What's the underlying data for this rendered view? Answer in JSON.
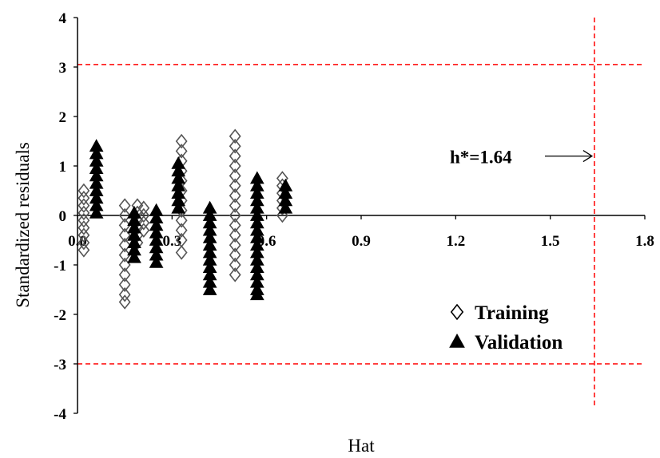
{
  "chart_data": {
    "type": "scatter",
    "title": "",
    "xlabel": "Hat",
    "ylabel": "Standardized residuals",
    "xlim": [
      0.0,
      1.8
    ],
    "ylim": [
      -4,
      4
    ],
    "x_ticks": [
      "0.0",
      "0.3",
      "0.6",
      "0.9",
      "1.2",
      "1.5",
      "1.8"
    ],
    "y_ticks": [
      "4",
      "3",
      "2",
      "1",
      "0",
      "-1",
      "-2",
      "-3",
      "-4"
    ],
    "grid": false,
    "legend_position": "bottom-right",
    "reference_lines": {
      "upper_residual": 3.05,
      "lower_residual": -3.0,
      "warning_leverage": 1.64,
      "color": "#ff0000",
      "style": "dashed"
    },
    "annotation": {
      "text": "h*=1.64",
      "arrow_to_x": 1.64,
      "y": 1.2
    },
    "series": [
      {
        "name": "Training",
        "marker": "open-diamond",
        "color": "#555555",
        "points": [
          [
            0.02,
            0.5
          ],
          [
            0.02,
            0.35
          ],
          [
            0.02,
            0.2
          ],
          [
            0.02,
            0.05
          ],
          [
            0.02,
            -0.1
          ],
          [
            0.02,
            -0.25
          ],
          [
            0.02,
            -0.4
          ],
          [
            0.02,
            -0.55
          ],
          [
            0.02,
            -0.7
          ],
          [
            0.15,
            0.2
          ],
          [
            0.15,
            0.0
          ],
          [
            0.15,
            -0.2
          ],
          [
            0.15,
            -0.4
          ],
          [
            0.15,
            -0.6
          ],
          [
            0.15,
            -0.8
          ],
          [
            0.15,
            -1.0
          ],
          [
            0.15,
            -1.2
          ],
          [
            0.15,
            -1.4
          ],
          [
            0.15,
            -1.6
          ],
          [
            0.15,
            -1.75
          ],
          [
            0.19,
            0.2
          ],
          [
            0.19,
            0.05
          ],
          [
            0.19,
            -0.1
          ],
          [
            0.19,
            -0.25
          ],
          [
            0.19,
            -0.4
          ],
          [
            0.19,
            -0.55
          ],
          [
            0.21,
            0.15
          ],
          [
            0.21,
            0.0
          ],
          [
            0.21,
            -0.15
          ],
          [
            0.21,
            -0.3
          ],
          [
            0.33,
            1.5
          ],
          [
            0.33,
            1.3
          ],
          [
            0.33,
            1.1
          ],
          [
            0.33,
            0.9
          ],
          [
            0.33,
            0.7
          ],
          [
            0.33,
            0.5
          ],
          [
            0.33,
            0.3
          ],
          [
            0.33,
            0.1
          ],
          [
            0.33,
            -0.1
          ],
          [
            0.33,
            -0.3
          ],
          [
            0.33,
            -0.5
          ],
          [
            0.33,
            -0.75
          ],
          [
            0.5,
            1.6
          ],
          [
            0.5,
            1.4
          ],
          [
            0.5,
            1.2
          ],
          [
            0.5,
            1.0
          ],
          [
            0.5,
            0.8
          ],
          [
            0.5,
            0.6
          ],
          [
            0.5,
            0.4
          ],
          [
            0.5,
            0.2
          ],
          [
            0.5,
            0.0
          ],
          [
            0.5,
            -0.2
          ],
          [
            0.5,
            -0.4
          ],
          [
            0.5,
            -0.6
          ],
          [
            0.5,
            -0.8
          ],
          [
            0.5,
            -1.0
          ],
          [
            0.5,
            -1.2
          ],
          [
            0.65,
            0.75
          ],
          [
            0.65,
            0.6
          ],
          [
            0.65,
            0.45
          ],
          [
            0.65,
            0.3
          ],
          [
            0.65,
            0.15
          ],
          [
            0.65,
            0.0
          ]
        ]
      },
      {
        "name": "Validation",
        "marker": "filled-triangle",
        "color": "#000000",
        "points": [
          [
            0.06,
            1.4
          ],
          [
            0.06,
            1.25
          ],
          [
            0.06,
            1.1
          ],
          [
            0.06,
            0.95
          ],
          [
            0.06,
            0.8
          ],
          [
            0.06,
            0.65
          ],
          [
            0.06,
            0.5
          ],
          [
            0.06,
            0.35
          ],
          [
            0.06,
            0.2
          ],
          [
            0.06,
            0.05
          ],
          [
            0.18,
            0.05
          ],
          [
            0.18,
            -0.1
          ],
          [
            0.18,
            -0.25
          ],
          [
            0.18,
            -0.4
          ],
          [
            0.18,
            -0.55
          ],
          [
            0.18,
            -0.7
          ],
          [
            0.18,
            -0.85
          ],
          [
            0.25,
            0.1
          ],
          [
            0.25,
            -0.05
          ],
          [
            0.25,
            -0.2
          ],
          [
            0.25,
            -0.35
          ],
          [
            0.25,
            -0.5
          ],
          [
            0.25,
            -0.65
          ],
          [
            0.25,
            -0.8
          ],
          [
            0.25,
            -0.95
          ],
          [
            0.32,
            1.05
          ],
          [
            0.32,
            0.9
          ],
          [
            0.32,
            0.75
          ],
          [
            0.32,
            0.6
          ],
          [
            0.32,
            0.45
          ],
          [
            0.32,
            0.3
          ],
          [
            0.32,
            0.15
          ],
          [
            0.42,
            0.15
          ],
          [
            0.42,
            0.0
          ],
          [
            0.42,
            -0.15
          ],
          [
            0.42,
            -0.3
          ],
          [
            0.42,
            -0.45
          ],
          [
            0.42,
            -0.6
          ],
          [
            0.42,
            -0.75
          ],
          [
            0.42,
            -0.9
          ],
          [
            0.42,
            -1.05
          ],
          [
            0.42,
            -1.2
          ],
          [
            0.42,
            -1.35
          ],
          [
            0.42,
            -1.5
          ],
          [
            0.57,
            0.75
          ],
          [
            0.57,
            0.6
          ],
          [
            0.57,
            0.45
          ],
          [
            0.57,
            0.3
          ],
          [
            0.57,
            0.15
          ],
          [
            0.57,
            0.0
          ],
          [
            0.57,
            -0.15
          ],
          [
            0.57,
            -0.3
          ],
          [
            0.57,
            -0.45
          ],
          [
            0.57,
            -0.6
          ],
          [
            0.57,
            -0.75
          ],
          [
            0.57,
            -0.9
          ],
          [
            0.57,
            -1.05
          ],
          [
            0.57,
            -1.2
          ],
          [
            0.57,
            -1.35
          ],
          [
            0.57,
            -1.5
          ],
          [
            0.57,
            -1.6
          ],
          [
            0.66,
            0.6
          ],
          [
            0.66,
            0.45
          ],
          [
            0.66,
            0.3
          ],
          [
            0.66,
            0.15
          ]
        ]
      }
    ]
  }
}
